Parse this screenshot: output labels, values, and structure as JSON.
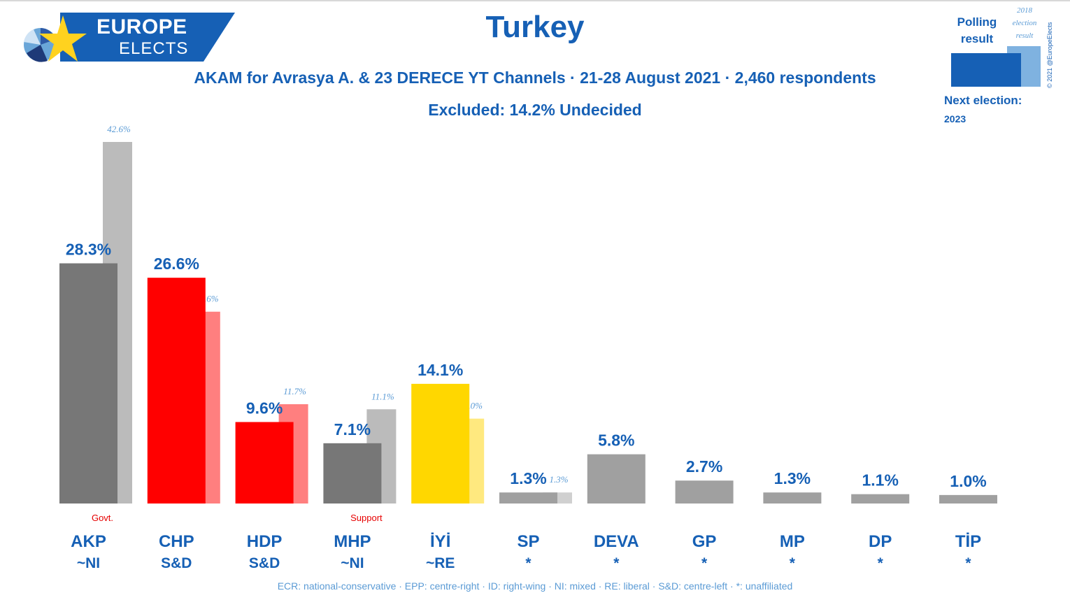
{
  "header": {
    "logo_line1": "EUROPE",
    "logo_line2": "ELECTS",
    "title": "Turkey",
    "subtitle": "AKAM for Avrasya A. & 23 DERECE YT Channels · 21-28 August 2021 · 2,460 respondents",
    "excluded": "Excluded: 14.2% Undecided"
  },
  "legend": {
    "polling_label": "Polling result",
    "election_label": "2018 election result",
    "copyright": "© 2021 @EuropeElects",
    "next_election_label": "Next election:",
    "next_election_year": "2023"
  },
  "footer": {
    "text": "ECR: national-conservative · EPP: centre-right · ID: right-wing · NI: mixed · RE: liberal · S&D: centre-left · *: unaffiliated"
  },
  "chart_data": {
    "type": "bar",
    "title": "Turkey",
    "ylim": [
      0,
      45
    ],
    "categories": [
      "AKP",
      "CHP",
      "HDP",
      "MHP",
      "İYİ",
      "SP",
      "DEVA",
      "GP",
      "MP",
      "DP",
      "TİP"
    ],
    "groups": [
      "~NI",
      "S&D",
      "S&D",
      "~NI",
      "~RE",
      "*",
      "*",
      "*",
      "*",
      "*",
      "*"
    ],
    "notes": [
      "Govt.",
      "",
      "",
      "Support",
      "",
      "",
      "",
      "",
      "",
      "",
      ""
    ],
    "series": [
      {
        "name": "Polling result",
        "values": [
          28.3,
          26.6,
          9.6,
          7.1,
          14.1,
          1.3,
          5.8,
          2.7,
          1.3,
          1.1,
          1.0
        ],
        "labels": [
          "28.3%",
          "26.6%",
          "9.6%",
          "7.1%",
          "14.1%",
          "1.3%",
          "5.8%",
          "2.7%",
          "1.3%",
          "1.1%",
          "1.0%"
        ]
      },
      {
        "name": "2018 election result",
        "values": [
          42.6,
          22.6,
          11.7,
          11.1,
          10.0,
          1.3,
          null,
          null,
          null,
          null,
          null
        ],
        "labels": [
          "42.6%",
          "22.6%",
          "11.7%",
          "11.1%",
          "10.0%",
          "1.3%",
          "",
          "",
          "",
          "",
          ""
        ]
      }
    ],
    "colors": {
      "primary": [
        "#777777",
        "#ff0000",
        "#ff0000",
        "#777777",
        "#ffd700",
        "#a0a0a0",
        "#a0a0a0",
        "#a0a0a0",
        "#a0a0a0",
        "#a0a0a0",
        "#a0a0a0"
      ],
      "secondary": [
        "#bbbbbb",
        "#ff7f7f",
        "#ff7f7f",
        "#bbbbbb",
        "#ffe97f",
        "#d0d0d0",
        "#d0d0d0",
        "#d0d0d0",
        "#d0d0d0",
        "#d0d0d0",
        "#d0d0d0"
      ],
      "label": "#1660b5",
      "secondary_label": "#5b9bd5",
      "note": "#e60000"
    }
  }
}
